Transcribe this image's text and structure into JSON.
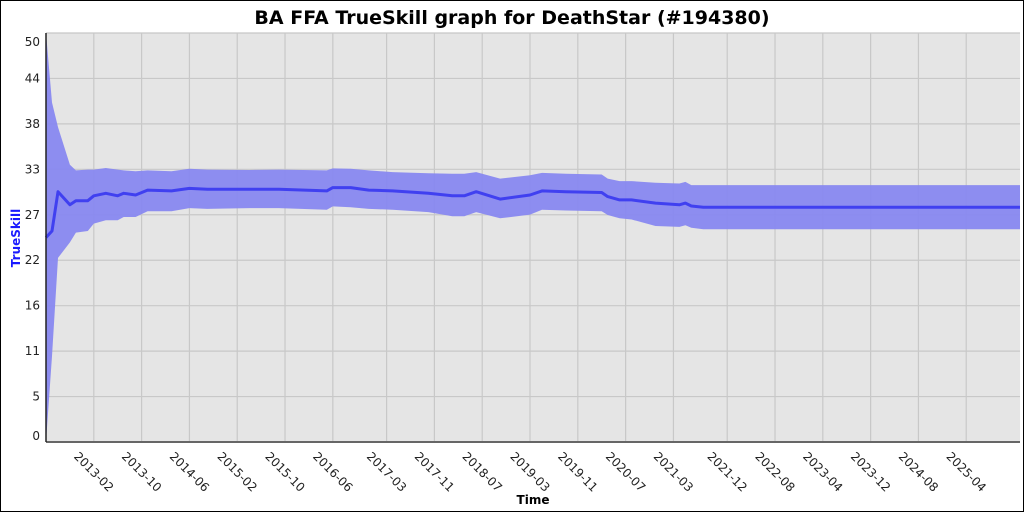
{
  "chart_data": {
    "type": "area",
    "title": "BA FFA TrueSkill graph for DeathStar (#194380)",
    "xlabel": "Time",
    "ylabel": "TrueSkill",
    "ylim": [
      0,
      50
    ],
    "yticks": [
      "0",
      "5",
      "11",
      "16",
      "22",
      "27",
      "33",
      "38",
      "44",
      "50"
    ],
    "xticks": [
      "2013-02",
      "2013-10",
      "2014-06",
      "2015-02",
      "2015-10",
      "2016-06",
      "2017-03",
      "2017-11",
      "2018-07",
      "2019-03",
      "2019-11",
      "2020-07",
      "2021-03",
      "2021-12",
      "2022-08",
      "2023-04",
      "2023-12",
      "2024-08",
      "2025-04"
    ],
    "xlim": [
      "2012-06",
      "2026-01"
    ],
    "grid": true,
    "colors": {
      "line": "#4040f0",
      "band": "#8888f0",
      "background": "#e5e5e5",
      "ylabel": "#1a1aff"
    },
    "series": [
      {
        "columns": [
          "date",
          "trueskill",
          "lower",
          "upper"
        ],
        "points": [
          [
            "2012-06",
            25.0,
            0.0,
            50.0
          ],
          [
            "2012-07",
            25.8,
            10.5,
            41.5
          ],
          [
            "2012-08",
            30.6,
            22.5,
            38.5
          ],
          [
            "2012-10",
            29.0,
            24.4,
            33.9
          ],
          [
            "2012-11",
            29.5,
            25.6,
            33.2
          ],
          [
            "2013-01",
            29.5,
            25.8,
            33.3
          ],
          [
            "2013-02",
            30.1,
            26.7,
            33.3
          ],
          [
            "2013-04",
            30.4,
            27.1,
            33.5
          ],
          [
            "2013-06",
            30.1,
            27.1,
            33.3
          ],
          [
            "2013-07",
            30.4,
            27.5,
            33.2
          ],
          [
            "2013-09",
            30.2,
            27.5,
            33.1
          ],
          [
            "2013-11",
            30.8,
            28.2,
            33.2
          ],
          [
            "2014-03",
            30.7,
            28.2,
            33.1
          ],
          [
            "2014-06",
            31.0,
            28.6,
            33.4
          ],
          [
            "2014-09",
            30.9,
            28.5,
            33.3
          ],
          [
            "2015-04",
            30.9,
            28.6,
            33.25
          ],
          [
            "2015-09",
            30.9,
            28.6,
            33.3
          ],
          [
            "2016-05",
            30.7,
            28.4,
            33.2
          ],
          [
            "2016-06",
            31.1,
            28.8,
            33.45
          ],
          [
            "2016-09",
            31.1,
            28.7,
            33.4
          ],
          [
            "2016-12",
            30.8,
            28.5,
            33.2
          ],
          [
            "2017-04",
            30.7,
            28.4,
            33.0
          ],
          [
            "2017-10",
            30.4,
            28.1,
            32.85
          ],
          [
            "2018-02",
            30.1,
            27.6,
            32.8
          ],
          [
            "2018-04",
            30.1,
            27.6,
            32.8
          ],
          [
            "2018-06",
            30.6,
            28.1,
            33.0
          ],
          [
            "2018-10",
            29.7,
            27.35,
            32.2
          ],
          [
            "2019-03",
            30.2,
            27.8,
            32.6
          ],
          [
            "2019-05",
            30.7,
            28.4,
            32.9
          ],
          [
            "2019-09",
            30.6,
            28.3,
            32.8
          ],
          [
            "2020-03",
            30.5,
            28.2,
            32.7
          ],
          [
            "2020-04",
            30.0,
            27.75,
            32.2
          ],
          [
            "2020-06",
            29.6,
            27.35,
            31.9
          ],
          [
            "2020-08",
            29.6,
            27.2,
            31.9
          ],
          [
            "2020-12",
            29.2,
            26.4,
            31.7
          ],
          [
            "2021-04",
            29.0,
            26.3,
            31.6
          ],
          [
            "2021-05",
            29.2,
            26.5,
            31.8
          ],
          [
            "2021-06",
            28.85,
            26.2,
            31.4
          ],
          [
            "2021-08",
            28.7,
            26.0,
            31.4
          ],
          [
            "2026-01",
            28.7,
            26.0,
            31.4
          ]
        ]
      }
    ]
  }
}
